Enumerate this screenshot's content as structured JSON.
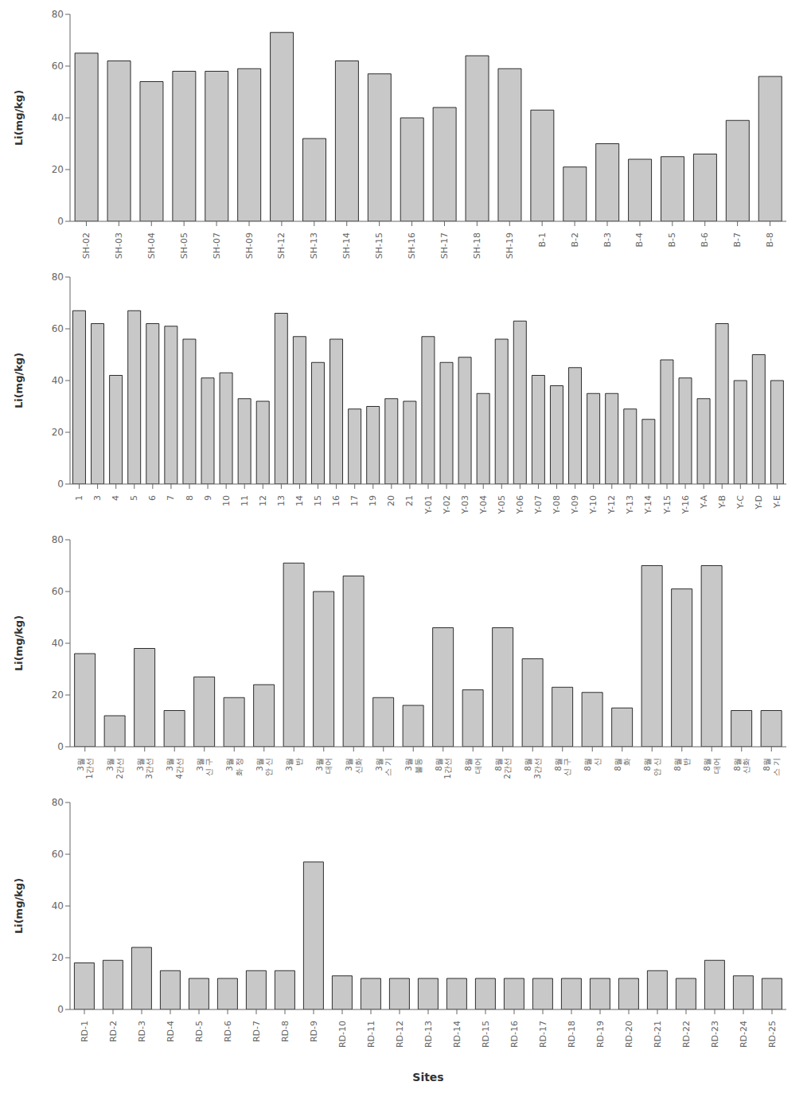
{
  "chart_data": [
    {
      "type": "bar",
      "categories": [
        "SH-02",
        "SH-03",
        "SH-04",
        "SH-05",
        "SH-07",
        "SH-09",
        "SH-12",
        "SH-13",
        "SH-14",
        "SH-15",
        "SH-16",
        "SH-17",
        "SH-18",
        "SH-19",
        "B-1",
        "B-2",
        "B-3",
        "B-4",
        "B-5",
        "B-6",
        "B-7",
        "B-8"
      ],
      "values": [
        65,
        62,
        54,
        58,
        58,
        59,
        73,
        32,
        62,
        57,
        40,
        44,
        64,
        59,
        43,
        21,
        30,
        24,
        25,
        26,
        39,
        56
      ],
      "color": "#C8C8C8",
      "ylabel": "Li(mg/kg)",
      "ylim": [
        0,
        80
      ],
      "yticks": [
        0,
        20,
        40,
        60,
        80
      ],
      "grid": false
    },
    {
      "type": "bar",
      "categories": [
        "1",
        "3",
        "4",
        "5",
        "6",
        "7",
        "8",
        "9",
        "10",
        "11",
        "12",
        "13",
        "14",
        "15",
        "16",
        "17",
        "19",
        "20",
        "21",
        "Y-01",
        "Y-02",
        "Y-03",
        "Y-04",
        "Y-05",
        "Y-06",
        "Y-07",
        "Y-08",
        "Y-09",
        "Y-10",
        "Y-12",
        "Y-13",
        "Y-14",
        "Y-15",
        "Y-16",
        "Y-A",
        "Y-B",
        "Y-C",
        "Y-D",
        "Y-E"
      ],
      "values": [
        67,
        62,
        42,
        67,
        62,
        61,
        56,
        41,
        43,
        33,
        32,
        66,
        57,
        47,
        56,
        29,
        30,
        33,
        32,
        57,
        47,
        49,
        35,
        56,
        63,
        42,
        38,
        45,
        35,
        35,
        29,
        25,
        48,
        41,
        33,
        62,
        40,
        50,
        40
      ],
      "color": "#C8C8C8",
      "ylabel": "Li(mg/kg)",
      "ylim": [
        0,
        80
      ],
      "yticks": [
        0,
        20,
        40,
        60,
        80
      ],
      "grid": false
    },
    {
      "type": "bar",
      "categories": [
        "3월\n1간선",
        "3월\n2간선",
        "3월\n3간선",
        "3월\n4간선",
        "3월\n신 구",
        "3월\n화 정",
        "3월\n안 신",
        "3월\n반",
        "3월\n대어",
        "3월\n신화",
        "3월\n스 기",
        "3월\n불동",
        "8월\n1간선",
        "8월\n대어",
        "8월\n2간선",
        "8월\n3간선",
        "8월\n신 구",
        "8월\n신",
        "8월\n화",
        "8월\n안 신",
        "8월\n반",
        "8월\n대어",
        "8월\n신화",
        "8월\n스 기"
      ],
      "values": [
        36,
        12,
        38,
        14,
        27,
        19,
        24,
        71,
        60,
        66,
        19,
        16,
        46,
        22,
        46,
        34,
        23,
        21,
        15,
        70,
        61,
        70,
        14,
        14
      ],
      "color": "#C8C8C8",
      "ylabel": "Li(mg/kg)",
      "ylim": [
        0,
        80
      ],
      "yticks": [
        0,
        20,
        40,
        60,
        80
      ],
      "grid": false
    },
    {
      "type": "bar",
      "categories": [
        "RD-1",
        "RD-2",
        "RD-3",
        "RD-4",
        "RD-5",
        "RD-6",
        "RD-7",
        "RD-8",
        "RD-9",
        "RD-10",
        "RD-11",
        "RD-12",
        "RD-13",
        "RD-14",
        "RD-15",
        "RD-16",
        "RD-17",
        "RD-18",
        "RD-19",
        "RD-20",
        "RD-21",
        "RD-22",
        "RD-23",
        "RD-24",
        "RD-25"
      ],
      "values": [
        18,
        19,
        24,
        15,
        12,
        12,
        15,
        15,
        57,
        13,
        12,
        12,
        12,
        12,
        12,
        12,
        12,
        12,
        12,
        12,
        15,
        12,
        19,
        13,
        12
      ],
      "color": "#C8C8C8",
      "ylabel": "Li(mg/kg)",
      "xlabel": "Sites",
      "ylim": [
        0,
        80
      ],
      "yticks": [
        0,
        20,
        40,
        60,
        80
      ],
      "grid": false
    }
  ]
}
